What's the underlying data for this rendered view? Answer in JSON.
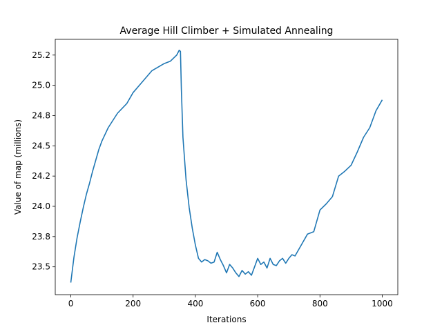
{
  "chart_data": {
    "type": "line",
    "title": "Average Hill Climber + Simulated Annealing",
    "x_label": "Iterations",
    "y_label": "Value of map (millions)",
    "x": [
      0,
      10,
      20,
      30,
      40,
      50,
      60,
      70,
      80,
      90,
      100,
      120,
      150,
      180,
      200,
      230,
      260,
      280,
      300,
      320,
      340,
      348,
      352,
      355,
      360,
      370,
      380,
      390,
      400,
      410,
      420,
      430,
      440,
      450,
      460,
      470,
      480,
      490,
      500,
      510,
      520,
      530,
      540,
      550,
      560,
      570,
      580,
      590,
      600,
      610,
      620,
      630,
      640,
      650,
      660,
      670,
      680,
      690,
      700,
      710,
      720,
      740,
      760,
      780,
      800,
      820,
      840,
      860,
      880,
      900,
      920,
      940,
      960,
      980,
      1000
    ],
    "series": [
      {
        "name": "Average",
        "color": "#1f77b4",
        "values": [
          23.37,
          23.58,
          23.74,
          23.87,
          23.99,
          24.1,
          24.19,
          24.29,
          24.38,
          24.47,
          24.54,
          24.65,
          24.77,
          24.85,
          24.94,
          25.03,
          25.12,
          25.15,
          25.18,
          25.2,
          25.25,
          25.29,
          25.28,
          24.97,
          24.57,
          24.22,
          23.99,
          23.82,
          23.68,
          23.57,
          23.54,
          23.56,
          23.55,
          23.53,
          23.54,
          23.62,
          23.56,
          23.51,
          23.45,
          23.52,
          23.49,
          23.45,
          23.42,
          23.47,
          23.44,
          23.46,
          23.43,
          23.5,
          23.57,
          23.52,
          23.54,
          23.49,
          23.57,
          23.52,
          23.51,
          23.55,
          23.57,
          23.53,
          23.57,
          23.6,
          23.59,
          23.68,
          23.77,
          23.79,
          23.97,
          24.02,
          24.08,
          24.25,
          24.29,
          24.34,
          24.45,
          24.57,
          24.65,
          24.79,
          24.88
        ]
      }
    ],
    "xlim": [
      -50,
      1050
    ],
    "xticks": [
      0,
      200,
      400,
      600,
      800,
      1000
    ],
    "ylim": [
      23.27,
      25.38
    ],
    "yticks": [
      {
        "value": 23.5,
        "label": "23.5"
      },
      {
        "value": 23.75,
        "label": "23.8"
      },
      {
        "value": 24.0,
        "label": "24.0"
      },
      {
        "value": 24.25,
        "label": "24.2"
      },
      {
        "value": 24.5,
        "label": "24.5"
      },
      {
        "value": 24.75,
        "label": "24.8"
      },
      {
        "value": 25.0,
        "label": "25.0"
      },
      {
        "value": 25.25,
        "label": "25.2"
      }
    ]
  }
}
